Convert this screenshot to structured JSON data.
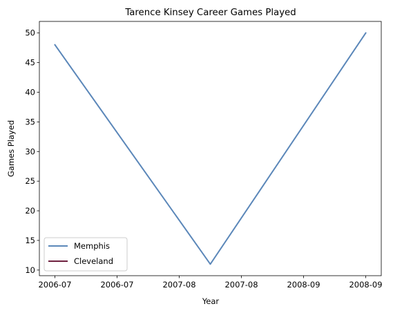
{
  "chart_data": {
    "type": "line",
    "title": "Tarence Kinsey Career Games Played",
    "xlabel": "Year",
    "ylabel": "Games Played",
    "x_tick_labels": [
      "2006-07",
      "2006-07",
      "2007-08",
      "2007-08",
      "2008-09",
      "2008-09"
    ],
    "x_tick_positions": [
      0,
      0.4,
      0.8,
      1.2,
      1.6,
      2.0
    ],
    "x": [
      0,
      1,
      2
    ],
    "ylim": [
      9.05,
      51.95
    ],
    "xlim": [
      -0.1,
      2.1
    ],
    "y_ticks": [
      10,
      15,
      20,
      25,
      30,
      35,
      40,
      45,
      50
    ],
    "grid": false,
    "legend_position": "lower-left",
    "series": [
      {
        "name": "Memphis",
        "color": "#5b87b9",
        "x": [
          0,
          1,
          2
        ],
        "values": [
          48,
          11,
          50
        ]
      },
      {
        "name": "Cleveland",
        "color": "#6e1f3f",
        "x": [],
        "values": []
      }
    ]
  }
}
